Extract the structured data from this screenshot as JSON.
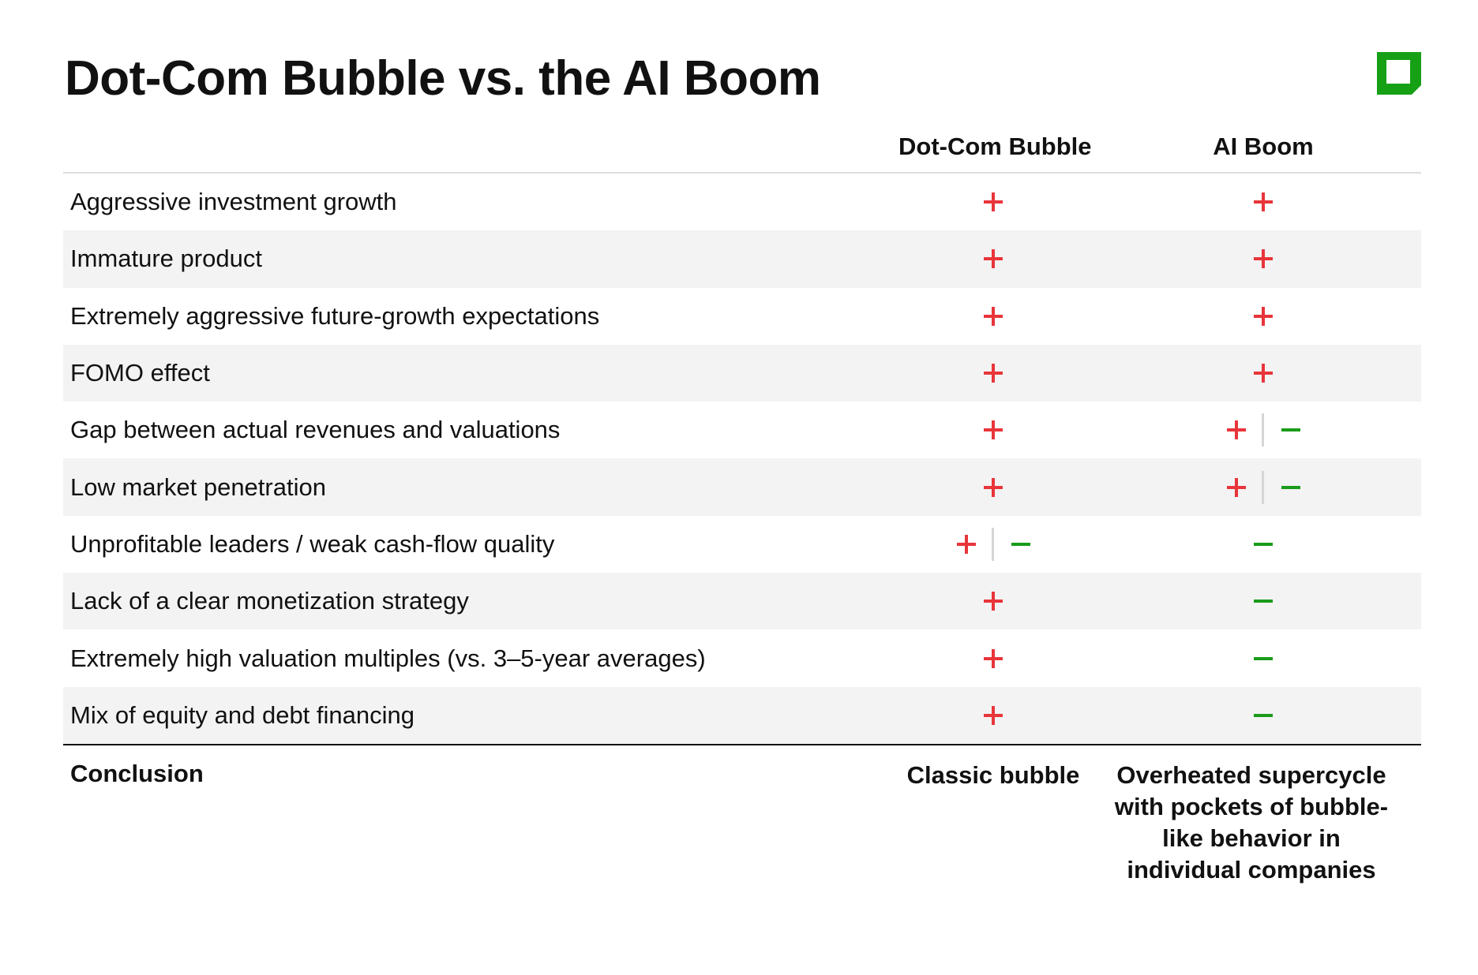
{
  "title": "Dot-Com Bubble vs. the AI Boom",
  "brand": {
    "logo_icon": "square-logo-icon",
    "accent_color": "#16a016"
  },
  "marks": {
    "plus_color": "#e8353a",
    "minus_color": "#1a9b1a"
  },
  "columns": {
    "dotcom": "Dot-Com Bubble",
    "ai": "AI Boom"
  },
  "rows": [
    {
      "label": "Aggressive investment growth",
      "dotcom": "+",
      "ai": "+"
    },
    {
      "label": "Immature product",
      "dotcom": "+",
      "ai": "+"
    },
    {
      "label": "Extremely aggressive future-growth expectations",
      "dotcom": "+",
      "ai": "+"
    },
    {
      "label": "FOMO effect",
      "dotcom": "+",
      "ai": "+"
    },
    {
      "label": "Gap between actual revenues and valuations",
      "dotcom": "+",
      "ai": "+|−"
    },
    {
      "label": "Low market penetration",
      "dotcom": "+",
      "ai": "+|−"
    },
    {
      "label": "Unprofitable leaders / weak cash-flow quality",
      "dotcom": "+|−",
      "ai": "−"
    },
    {
      "label": "Lack of a clear monetization strategy",
      "dotcom": "+",
      "ai": "−"
    },
    {
      "label": "Extremely high valuation multiples (vs. 3–5-year averages)",
      "dotcom": "+",
      "ai": "−"
    },
    {
      "label": "Mix of equity and debt financing",
      "dotcom": "+",
      "ai": "−"
    }
  ],
  "conclusion": {
    "label": "Conclusion",
    "dotcom": "Classic bubble",
    "ai": "Overheated supercycle with pockets of bubble-like behavior in individual companies"
  }
}
